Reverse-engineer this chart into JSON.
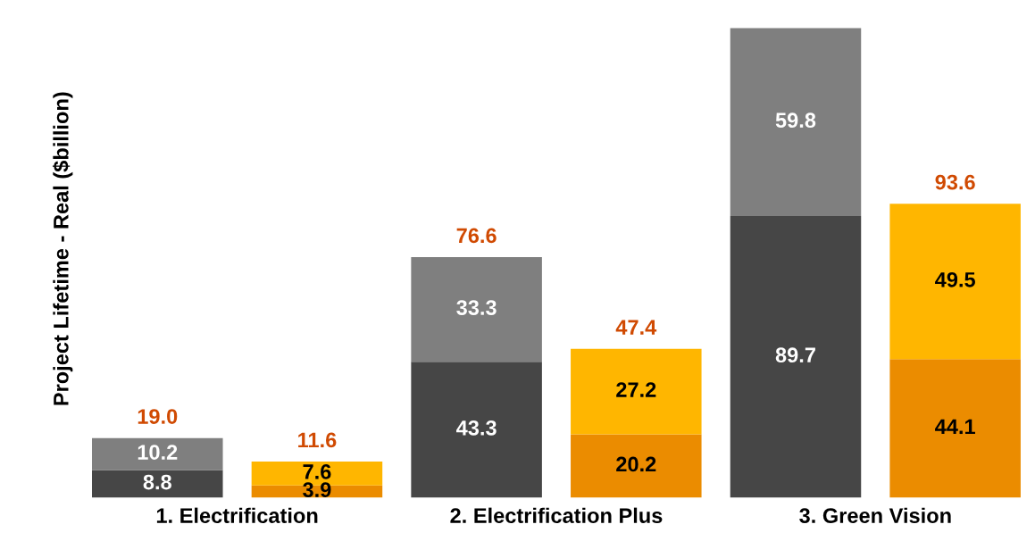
{
  "chart_data": {
    "type": "bar",
    "ylabel": "Project Lifetime - Real ($billion)",
    "categories": [
      "1. Electrification",
      null,
      "2. Electrification Plus",
      null,
      "3. Green Vision",
      null
    ],
    "stacked": true,
    "series": [
      {
        "colors": [
          "#464646",
          "#eb8c00",
          "#464646",
          "#eb8c00",
          "#464646",
          "#eb8c00"
        ],
        "values": [
          8.8,
          3.9,
          43.3,
          20.2,
          89.7,
          44.1
        ]
      },
      {
        "colors": [
          "#7f7f7f",
          "#ffb600",
          "#7f7f7f",
          "#ffb600",
          "#7f7f7f",
          "#ffb600"
        ],
        "values": [
          10.2,
          7.6,
          33.3,
          27.2,
          59.8,
          49.5
        ]
      }
    ],
    "totals": [
      "19.0",
      "11.6",
      "76.6",
      "47.4",
      null,
      "93.6"
    ],
    "data_labels": true,
    "tick_labels": "x"
  }
}
